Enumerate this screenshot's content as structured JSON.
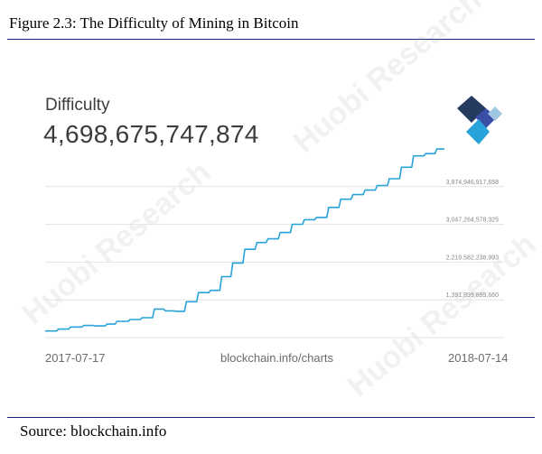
{
  "figure_title": "Figure 2.3: The Difficulty of Mining in Bitcoin",
  "source": "Source: blockchain.info",
  "watermark": "Huobi Research",
  "logo_icon": "blockchain-logo-icon",
  "colors": {
    "line": "#27a3d9",
    "grid": "#e3e3e3",
    "rule": "#1a237e"
  },
  "chart_data": {
    "type": "line",
    "title": "Difficulty",
    "headline_value": "4,698,675,747,874",
    "xlabel": "",
    "ylabel": "",
    "x_tick_labels": [
      "2017-07-17",
      "blockchain.info/charts",
      "2018-07-14"
    ],
    "y_tick_values": [
      1391899899660,
      2219582238993,
      3047264578325,
      3874946917658
    ],
    "y_tick_labels": [
      "1,391,899,899,660",
      "2,219,582,238,993",
      "3,047,264,578,325",
      "3,874,946,917,658"
    ],
    "ylim": [
      564217560327,
      4702629256990
    ],
    "xlim": [
      "2017-07-17",
      "2018-07-14"
    ],
    "grid": true,
    "series": [
      {
        "x": [
          "2017-07-17",
          "2017-07-29",
          "2017-08-09",
          "2017-08-21",
          "2017-08-31",
          "2017-09-11",
          "2017-09-20",
          "2017-10-02",
          "2017-10-13",
          "2017-10-24",
          "2017-11-03",
          "2017-11-12",
          "2017-11-22",
          "2017-12-03",
          "2017-12-14",
          "2017-12-24",
          "2018-01-03",
          "2018-01-14",
          "2018-01-25",
          "2018-02-04",
          "2018-02-15",
          "2018-02-26",
          "2018-03-09",
          "2018-03-20",
          "2018-03-31",
          "2018-04-11",
          "2018-04-22",
          "2018-05-03",
          "2018-05-14",
          "2018-05-25",
          "2018-06-05",
          "2018-06-16",
          "2018-06-27",
          "2018-07-07"
        ],
        "y": [
          708000000000,
          750000000000,
          795000000000,
          830000000000,
          820000000000,
          860000000000,
          920000000000,
          960000000000,
          1000000000000,
          1190000000000,
          1150000000000,
          1140000000000,
          1350000000000,
          1550000000000,
          1600000000000,
          1900000000000,
          2200000000000,
          2500000000000,
          2650000000000,
          2730000000000,
          2870000000000,
          3050000000000,
          3150000000000,
          3200000000000,
          3420000000000,
          3600000000000,
          3700000000000,
          3800000000000,
          3900000000000,
          4050000000000,
          4300000000000,
          4550000000000,
          4600000000000,
          4700000000000
        ]
      }
    ]
  }
}
